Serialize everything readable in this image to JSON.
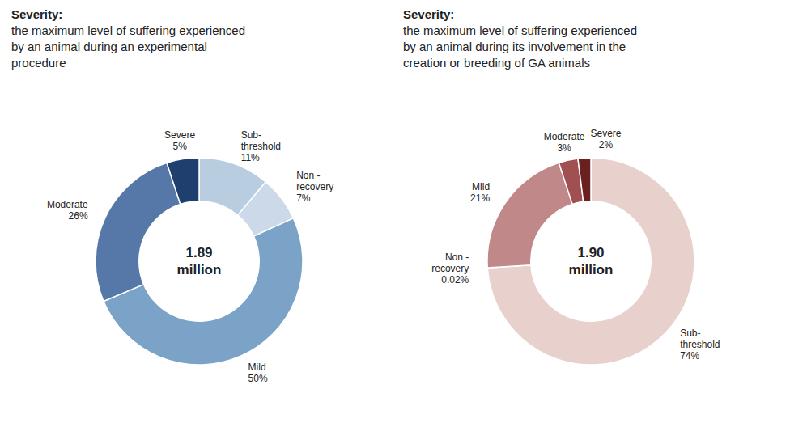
{
  "chart_data": [
    {
      "type": "pie",
      "title": "Severity:",
      "subtitle": "the maximum level of suffering experienced\nby an animal during an experimental\nprocedure",
      "annotations": [
        "1.89\nmillion"
      ],
      "categories": [
        "Sub-\nthreshold",
        "Non -\nrecovery",
        "Mild",
        "Moderate",
        "Severe"
      ],
      "values": [
        11,
        7,
        50,
        26,
        5
      ],
      "value_labels": [
        "11%",
        "7%",
        "50%",
        "26%",
        "5%"
      ],
      "colors": [
        "#b8cde0",
        "#ccd9e8",
        "#7ba3c8",
        "#5578a8",
        "#1f3f6e"
      ],
      "data_labels": true
    },
    {
      "type": "pie",
      "title": "Severity:",
      "subtitle": "the maximum level of suffering experienced\nby an animal during its involvement in the\ncreation or breeding of GA animals",
      "annotations": [
        "1.90\nmillion"
      ],
      "categories": [
        "Sub-\nthreshold",
        "Non -\nrecovery",
        "Mild",
        "Moderate",
        "Severe"
      ],
      "values": [
        74,
        0.02,
        21,
        3,
        2
      ],
      "value_labels": [
        "74%",
        "0.02%",
        "21%",
        "3%",
        "2%"
      ],
      "colors": [
        "#e8d0cc",
        "#7a2020",
        "#c08888",
        "#a05050",
        "#6b2020"
      ],
      "data_labels": true
    }
  ]
}
